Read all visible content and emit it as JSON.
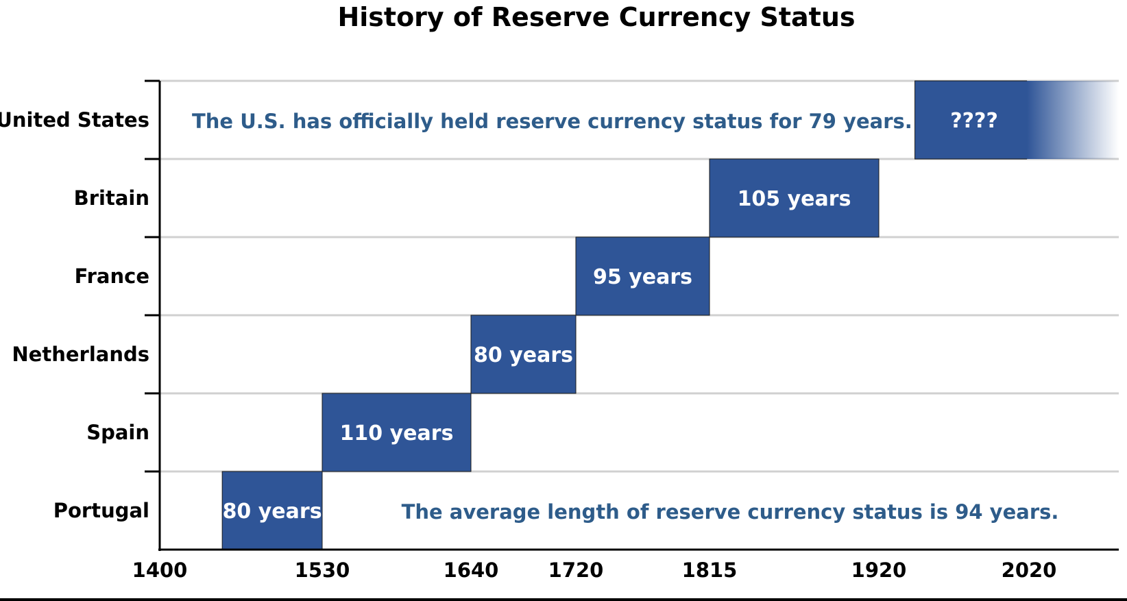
{
  "chart_data": {
    "type": "bar",
    "title": "History of Reserve Currency Status",
    "xlabel": "",
    "ylabel": "",
    "categories": [
      "United States",
      "Britain",
      "France",
      "Netherlands",
      "Spain",
      "Portugal"
    ],
    "x_ticks": [
      1400,
      1530,
      1640,
      1720,
      1815,
      1920,
      2020
    ],
    "bars": [
      {
        "country": "Portugal",
        "start": 1450,
        "end": 1530,
        "label": "80 years"
      },
      {
        "country": "Spain",
        "start": 1530,
        "end": 1640,
        "label": "110 years"
      },
      {
        "country": "Netherlands",
        "start": 1640,
        "end": 1720,
        "label": "80 years"
      },
      {
        "country": "France",
        "start": 1720,
        "end": 1815,
        "label": "95 years"
      },
      {
        "country": "Britain",
        "start": 1815,
        "end": 1920,
        "label": "105 years"
      },
      {
        "country": "United States",
        "start": 1944,
        "end": 2023,
        "label": "????",
        "fade": true
      }
    ],
    "annotations": [
      {
        "row": "United States",
        "text": "The U.S. has officially held reserve currency status for 79 years."
      },
      {
        "row": "Portugal",
        "text": "The average length of reserve currency status is 94 years."
      }
    ],
    "grid": true,
    "bar_color": "#2F5597",
    "annotation_color": "#2E5C8A",
    "grid_color": "#D0D0D0"
  }
}
